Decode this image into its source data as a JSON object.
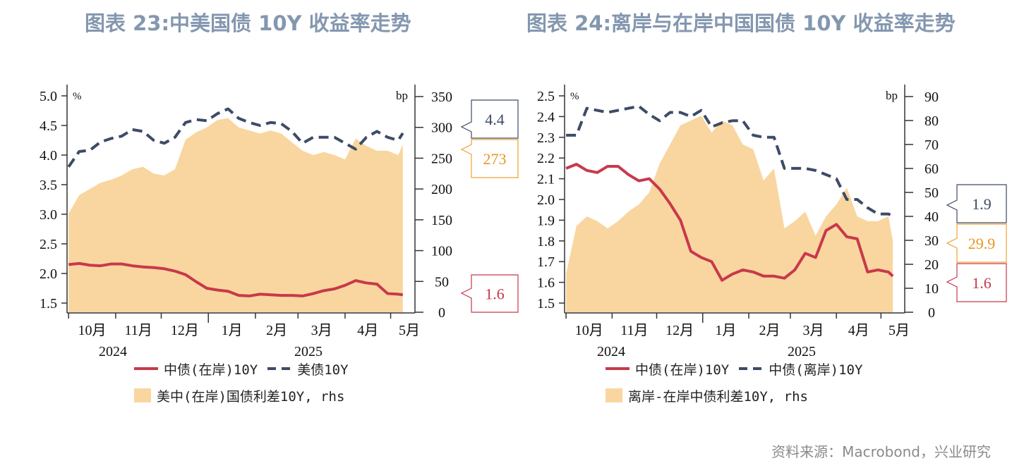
{
  "colors": {
    "cn_onshore": "#c8394b",
    "second_line": "#3d4b66",
    "spread_fill": "#f9d6a0",
    "title": "#8497b0"
  },
  "source": "资料来源：Macrobond，兴业研究",
  "chart_data": [
    {
      "type": "line+area",
      "title": "图表 23:中美国债 10Y 收益率走势",
      "y_unit_left": "%",
      "y_unit_right": "bp",
      "ylim_left": [
        1.5,
        5.0
      ],
      "yticks_left": [
        "5.0",
        "4.5",
        "4.0",
        "3.5",
        "3.0",
        "2.5",
        "2.0",
        "1.5"
      ],
      "ylim_right": [
        0,
        350
      ],
      "yticks_right": [
        "350",
        "300",
        "250",
        "200",
        "150",
        "100",
        "50",
        "0"
      ],
      "x_month_labels": [
        "10月",
        "11月",
        "12月",
        "1月",
        "2月",
        "3月",
        "4月",
        "5月"
      ],
      "x_year_labels": [
        "2024",
        "2025"
      ],
      "x": [
        "2024-10-01",
        "2024-10-08",
        "2024-10-15",
        "2024-10-22",
        "2024-10-29",
        "2024-11-05",
        "2024-11-12",
        "2024-11-19",
        "2024-11-26",
        "2024-12-03",
        "2024-12-10",
        "2024-12-17",
        "2024-12-24",
        "2024-12-31",
        "2025-01-07",
        "2025-01-14",
        "2025-01-21",
        "2025-01-28",
        "2025-02-04",
        "2025-02-11",
        "2025-02-18",
        "2025-02-25",
        "2025-03-04",
        "2025-03-11",
        "2025-03-18",
        "2025-03-25",
        "2025-04-01",
        "2025-04-08",
        "2025-04-15",
        "2025-04-22",
        "2025-04-29",
        "2025-05-06",
        "2025-05-09"
      ],
      "series": [
        {
          "name": "中债(在岸)10Y",
          "axis": "left",
          "style": "solid",
          "values": [
            2.15,
            2.17,
            2.14,
            2.13,
            2.16,
            2.16,
            2.13,
            2.11,
            2.1,
            2.08,
            2.04,
            1.98,
            1.86,
            1.75,
            1.72,
            1.7,
            1.63,
            1.62,
            1.65,
            1.64,
            1.63,
            1.63,
            1.62,
            1.66,
            1.71,
            1.74,
            1.8,
            1.88,
            1.84,
            1.82,
            1.66,
            1.65,
            1.64
          ]
        },
        {
          "name": "美债10Y",
          "axis": "left",
          "style": "dashed",
          "values": [
            3.8,
            4.06,
            4.08,
            4.22,
            4.28,
            4.32,
            4.43,
            4.4,
            4.25,
            4.2,
            4.3,
            4.55,
            4.6,
            4.58,
            4.7,
            4.78,
            4.62,
            4.55,
            4.5,
            4.55,
            4.53,
            4.4,
            4.2,
            4.3,
            4.3,
            4.3,
            4.2,
            4.1,
            4.3,
            4.4,
            4.3,
            4.25,
            4.37
          ]
        },
        {
          "name": "美中(在岸)国债利差10Y, rhs",
          "axis": "right",
          "style": "area",
          "values": [
            160,
            190,
            200,
            210,
            215,
            222,
            232,
            236,
            225,
            222,
            232,
            280,
            292,
            300,
            312,
            315,
            300,
            295,
            290,
            295,
            290,
            276,
            262,
            255,
            260,
            255,
            248,
            282,
            270,
            262,
            262,
            255,
            273
          ]
        }
      ],
      "callouts": [
        {
          "value": "4.4",
          "series": "美债10Y"
        },
        {
          "value": "273",
          "series": "spread"
        },
        {
          "value": "1.6",
          "series": "中债(在岸)10Y"
        }
      ]
    },
    {
      "type": "line+area",
      "title": "图表 24:离岸与在岸中国国债 10Y 收益率走势",
      "y_unit_left": "%",
      "y_unit_right": "bp",
      "ylim_left": [
        1.5,
        2.5
      ],
      "yticks_left": [
        "2.5",
        "2.4",
        "2.3",
        "2.2",
        "2.1",
        "2.0",
        "1.9",
        "1.8",
        "1.7",
        "1.6",
        "1.5"
      ],
      "ylim_right": [
        0,
        90
      ],
      "yticks_right": [
        "90",
        "80",
        "70",
        "60",
        "50",
        "40",
        "30",
        "20",
        "10",
        "0"
      ],
      "x_month_labels": [
        "10月",
        "11月",
        "12月",
        "1月",
        "2月",
        "3月",
        "4月",
        "5月"
      ],
      "x_year_labels": [
        "2024",
        "2025"
      ],
      "x": [
        "2024-10-01",
        "2024-10-08",
        "2024-10-15",
        "2024-10-22",
        "2024-10-29",
        "2024-11-05",
        "2024-11-12",
        "2024-11-19",
        "2024-11-26",
        "2024-12-03",
        "2024-12-10",
        "2024-12-17",
        "2024-12-24",
        "2024-12-31",
        "2025-01-07",
        "2025-01-14",
        "2025-01-21",
        "2025-01-28",
        "2025-02-04",
        "2025-02-11",
        "2025-02-18",
        "2025-02-25",
        "2025-03-04",
        "2025-03-11",
        "2025-03-18",
        "2025-03-25",
        "2025-04-01",
        "2025-04-08",
        "2025-04-15",
        "2025-04-22",
        "2025-04-29",
        "2025-05-06",
        "2025-05-09"
      ],
      "series": [
        {
          "name": "中债(在岸)10Y",
          "axis": "left",
          "style": "solid",
          "values": [
            2.15,
            2.17,
            2.14,
            2.13,
            2.16,
            2.16,
            2.12,
            2.09,
            2.1,
            2.05,
            1.98,
            1.9,
            1.75,
            1.72,
            1.7,
            1.61,
            1.64,
            1.66,
            1.65,
            1.63,
            1.63,
            1.62,
            1.66,
            1.74,
            1.72,
            1.85,
            1.88,
            1.82,
            1.81,
            1.65,
            1.66,
            1.65,
            1.63
          ]
        },
        {
          "name": "中债(离岸)10Y",
          "axis": "left",
          "style": "dashed",
          "values": [
            2.31,
            2.31,
            2.44,
            2.43,
            2.42,
            2.43,
            2.44,
            2.45,
            2.41,
            2.38,
            2.42,
            2.42,
            2.4,
            2.43,
            2.35,
            2.37,
            2.38,
            2.38,
            2.31,
            2.3,
            2.3,
            2.15,
            2.15,
            2.15,
            2.14,
            2.12,
            2.1,
            2.0,
            2.0,
            1.96,
            1.93,
            1.93,
            1.92
          ]
        },
        {
          "name": "离岸-在岸中债利差10Y, rhs",
          "axis": "right",
          "style": "area",
          "values": [
            16,
            36,
            40,
            38,
            35,
            38,
            42,
            45,
            50,
            62,
            70,
            78,
            80,
            82,
            75,
            80,
            78,
            70,
            68,
            55,
            60,
            35,
            38,
            42,
            32,
            40,
            45,
            52,
            40,
            38,
            38,
            40,
            30
          ]
        }
      ],
      "callouts": [
        {
          "value": "1.9",
          "series": "中债(离岸)10Y"
        },
        {
          "value": "29.9",
          "series": "spread"
        },
        {
          "value": "1.6",
          "series": "中债(在岸)10Y"
        }
      ]
    }
  ]
}
